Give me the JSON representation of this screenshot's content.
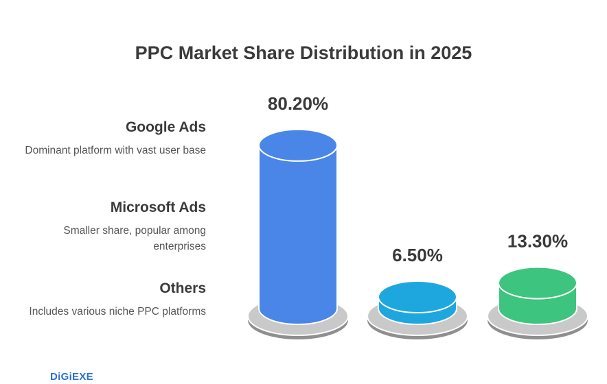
{
  "chart_data": {
    "type": "bar",
    "title": "PPC Market Share Distribution in 2025",
    "categories": [
      "Google Ads",
      "Microsoft Ads",
      "Others"
    ],
    "values": [
      80.2,
      6.5,
      13.3
    ],
    "value_labels": [
      "80.20%",
      "6.50%",
      "13.30%"
    ],
    "descriptions": [
      "Dominant platform with vast user base",
      "Smaller share, popular among enterprises",
      "Includes various niche PPC platforms"
    ],
    "colors": [
      "#4a86e8",
      "#1ea7df",
      "#3dc47e"
    ],
    "legend_placement": "left",
    "grid": false
  },
  "brand": {
    "name": "DiGiEXE"
  }
}
